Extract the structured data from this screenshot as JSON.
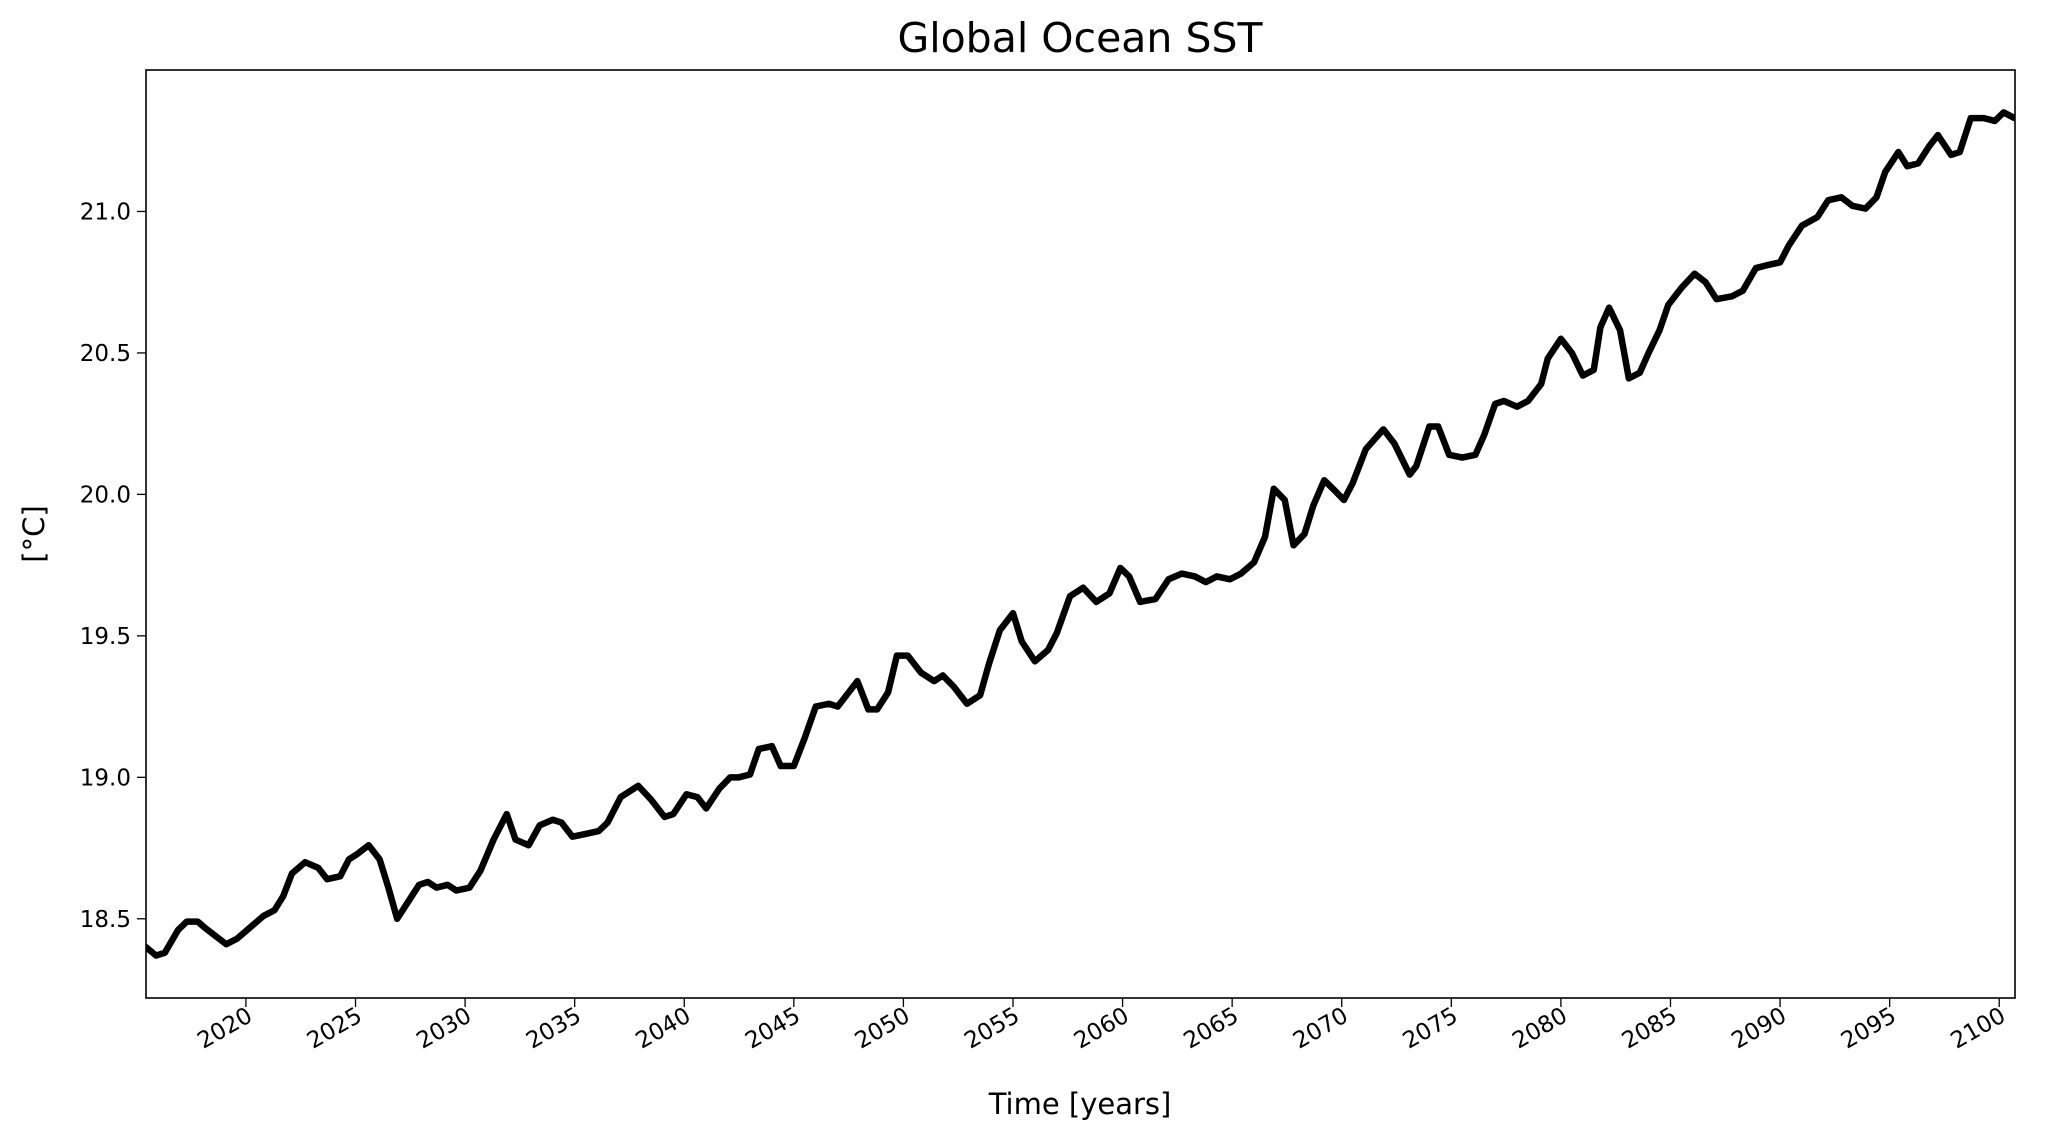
{
  "chart_data": {
    "type": "line",
    "title": "Global Ocean SST",
    "xlabel": "Time [years]",
    "ylabel": "[°C]",
    "color": "#000000",
    "xlim": [
      2015.44,
      2100.72
    ],
    "ylim": [
      18.22,
      21.5
    ],
    "xticks": [
      2020,
      2025,
      2030,
      2035,
      2040,
      2045,
      2050,
      2055,
      2060,
      2065,
      2070,
      2075,
      2080,
      2085,
      2090,
      2095,
      2100
    ],
    "yticks": [
      18.5,
      {
        "value": 19,
        "label": "19.0"
      },
      19.5,
      {
        "value": 20,
        "label": "20.0"
      },
      20.5,
      {
        "value": 21,
        "label": "21.0"
      }
    ],
    "x": [
      2015.44,
      2015.9,
      2016.3,
      2016.9,
      2017.3,
      2017.8,
      2018.1,
      2018.6,
      2019.1,
      2019.6,
      2020.2,
      2020.8,
      2021.3,
      2021.7,
      2022.1,
      2022.7,
      2023.3,
      2023.7,
      2024.3,
      2024.7,
      2025.1,
      2025.6,
      2026.1,
      2026.5,
      2026.9,
      2027.4,
      2027.9,
      2028.3,
      2028.7,
      2029.2,
      2029.6,
      2030.2,
      2030.7,
      2031.3,
      2031.9,
      2032.3,
      2032.9,
      2033.4,
      2034.0,
      2034.4,
      2034.9,
      2035.5,
      2036.1,
      2036.5,
      2037.1,
      2037.9,
      2038.5,
      2039.1,
      2039.5,
      2040.1,
      2040.6,
      2041.0,
      2041.6,
      2042.1,
      2042.5,
      2043.0,
      2043.4,
      2044.0,
      2044.4,
      2045.0,
      2045.5,
      2046.0,
      2046.6,
      2047.0,
      2047.5,
      2047.9,
      2048.4,
      2048.8,
      2049.3,
      2049.7,
      2050.2,
      2050.8,
      2051.4,
      2051.8,
      2052.3,
      2052.9,
      2053.5,
      2053.9,
      2054.4,
      2055.0,
      2055.4,
      2056.0,
      2056.6,
      2057.0,
      2057.6,
      2058.2,
      2058.8,
      2059.4,
      2059.9,
      2060.3,
      2060.8,
      2061.5,
      2062.1,
      2062.7,
      2063.3,
      2063.8,
      2064.3,
      2064.9,
      2065.4,
      2066.0,
      2066.5,
      2066.9,
      2067.4,
      2067.8,
      2068.3,
      2068.7,
      2069.2,
      2069.6,
      2070.1,
      2070.5,
      2071.1,
      2071.9,
      2072.4,
      2073.1,
      2073.4,
      2074.0,
      2074.4,
      2074.9,
      2075.5,
      2076.1,
      2076.5,
      2077.0,
      2077.4,
      2078.0,
      2078.5,
      2079.1,
      2079.4,
      2080.0,
      2080.5,
      2081.0,
      2081.5,
      2081.8,
      2082.2,
      2082.7,
      2083.1,
      2083.6,
      2084.0,
      2084.5,
      2084.9,
      2085.5,
      2086.1,
      2086.6,
      2087.1,
      2087.8,
      2088.3,
      2088.9,
      2089.4,
      2090.0,
      2090.4,
      2091.0,
      2091.7,
      2092.2,
      2092.8,
      2093.3,
      2093.9,
      2094.4,
      2094.8,
      2095.4,
      2095.8,
      2096.3,
      2096.8,
      2097.2,
      2097.8,
      2098.2,
      2098.7,
      2099.3,
      2099.8,
      2100.2,
      2100.7
    ],
    "values": [
      18.4,
      18.37,
      18.38,
      18.46,
      18.49,
      18.49,
      18.47,
      18.44,
      18.41,
      18.43,
      18.47,
      18.51,
      18.53,
      18.58,
      18.66,
      18.7,
      18.68,
      18.64,
      18.65,
      18.71,
      18.73,
      18.76,
      18.71,
      18.61,
      18.5,
      18.56,
      18.62,
      18.63,
      18.61,
      18.62,
      18.6,
      18.61,
      18.67,
      18.78,
      18.87,
      18.78,
      18.76,
      18.83,
      18.85,
      18.84,
      18.79,
      18.8,
      18.81,
      18.84,
      18.93,
      18.97,
      18.92,
      18.86,
      18.87,
      18.94,
      18.93,
      18.89,
      18.96,
      19.0,
      19.0,
      19.01,
      19.1,
      19.11,
      19.04,
      19.04,
      19.14,
      19.25,
      19.26,
      19.25,
      19.3,
      19.34,
      19.24,
      19.24,
      19.3,
      19.43,
      19.43,
      19.37,
      19.34,
      19.36,
      19.32,
      19.26,
      19.29,
      19.4,
      19.52,
      19.58,
      19.48,
      19.41,
      19.45,
      19.51,
      19.64,
      19.67,
      19.62,
      19.65,
      19.74,
      19.71,
      19.62,
      19.63,
      19.7,
      19.72,
      19.71,
      19.69,
      19.71,
      19.7,
      19.72,
      19.76,
      19.85,
      20.02,
      19.98,
      19.82,
      19.86,
      19.96,
      20.05,
      20.02,
      19.98,
      20.04,
      20.16,
      20.23,
      20.18,
      20.07,
      20.1,
      20.24,
      20.24,
      20.14,
      20.13,
      20.14,
      20.21,
      20.32,
      20.33,
      20.31,
      20.33,
      20.39,
      20.48,
      20.55,
      20.5,
      20.42,
      20.44,
      20.59,
      20.66,
      20.58,
      20.41,
      20.43,
      20.5,
      20.58,
      20.67,
      20.73,
      20.78,
      20.75,
      20.69,
      20.7,
      20.72,
      20.8,
      20.81,
      20.82,
      20.88,
      20.95,
      20.98,
      21.04,
      21.05,
      21.02,
      21.01,
      21.05,
      21.14,
      21.21,
      21.16,
      21.17,
      21.23,
      21.27,
      21.2,
      21.21,
      21.33,
      21.33,
      21.32,
      21.35,
      21.33
    ]
  }
}
